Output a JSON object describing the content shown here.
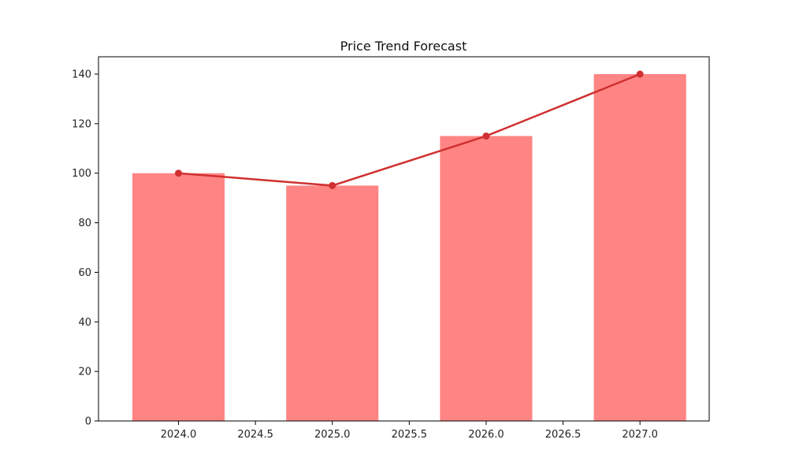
{
  "chart_data": {
    "type": "bar",
    "title": "Price Trend Forecast",
    "xlabel": "",
    "ylabel": "",
    "x": [
      2024,
      2025,
      2026,
      2027
    ],
    "values": [
      100,
      95,
      115,
      140
    ],
    "bar_width": 0.6,
    "xlim": [
      2023.48,
      2027.45
    ],
    "ylim": [
      0,
      147
    ],
    "x_ticks": [
      2024.0,
      2024.5,
      2025.0,
      2025.5,
      2026.0,
      2026.5,
      2027.0
    ],
    "x_tick_labels": [
      "2024.0",
      "2024.5",
      "2025.0",
      "2025.5",
      "2026.0",
      "2026.5",
      "2027.0"
    ],
    "y_ticks": [
      0,
      20,
      40,
      60,
      80,
      100,
      120,
      140
    ],
    "y_tick_labels": [
      "0",
      "20",
      "40",
      "60",
      "80",
      "100",
      "120",
      "140"
    ],
    "overlay_line": {
      "type": "line",
      "markers": true,
      "values": [
        100,
        95,
        115,
        140
      ]
    },
    "grid": false,
    "legend": "none",
    "colors": {
      "bar": "#ff8585",
      "line": "#d03030",
      "axis": "#000000"
    }
  }
}
